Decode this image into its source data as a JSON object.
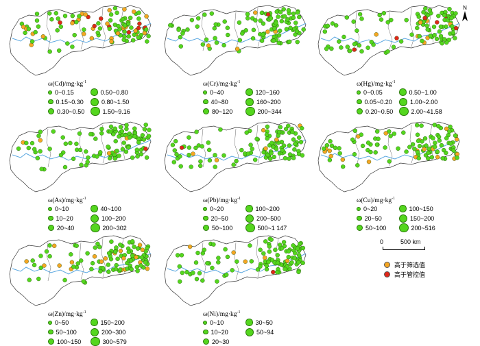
{
  "north_label": "N",
  "colors": {
    "normal": "#54d61e",
    "screen": "#f5a623",
    "control": "#e0261a",
    "river": "#5aa7e0"
  },
  "panels": [
    {
      "id": "cd",
      "title_prefix": "ω(Cd)/mg·kg",
      "title_sup": "-1",
      "classes": [
        "0~0.15",
        "0.50~0.80",
        "0.15~0.30",
        "0.80~1.50",
        "0.30~0.50",
        "1.50~9.16"
      ]
    },
    {
      "id": "cr",
      "title_prefix": "ω(Cr)/mg·kg",
      "title_sup": "-1",
      "classes": [
        "0~40",
        "120~160",
        "40~80",
        "160~200",
        "80~120",
        "200~344"
      ]
    },
    {
      "id": "hg",
      "title_prefix": "ω(Hg)/mg·kg",
      "title_sup": "-1",
      "classes": [
        "0~0.05",
        "0.50~1.00",
        "0.05~0.20",
        "1.00~2.00",
        "0.20~0.50",
        "2.00~41.58"
      ]
    },
    {
      "id": "as",
      "title_prefix": "ω(As)/mg·kg",
      "title_sup": "-1",
      "classes": [
        "0~10",
        "40~100",
        "10~20",
        "100~200",
        "20~40",
        "200~302"
      ]
    },
    {
      "id": "pb",
      "title_prefix": "ω(Pb)/mg·kg",
      "title_sup": "-1",
      "classes": [
        "0~20",
        "100~200",
        "20~50",
        "200~500",
        "50~100",
        "500~1 147"
      ]
    },
    {
      "id": "cu",
      "title_prefix": "ω(Cu)/mg·kg",
      "title_sup": "-1",
      "classes": [
        "0~20",
        "100~150",
        "20~50",
        "150~200",
        "50~100",
        "200~516"
      ]
    },
    {
      "id": "zn",
      "title_prefix": "ω(Zn)/mg·kg",
      "title_sup": "-1",
      "classes": [
        "0~50",
        "150~200",
        "50~100",
        "200~300",
        "100~150",
        "300~579"
      ]
    },
    {
      "id": "ni",
      "title_prefix": "ω(Ni)/mg·kg",
      "title_sup": "-1",
      "classes": [
        "0~10",
        "30~50",
        "10~20",
        "50~94",
        "20~30"
      ]
    }
  ],
  "scale": {
    "zero": "0",
    "distance": "500 km"
  },
  "legend": {
    "screen_label": "高于筛选值",
    "control_label": "高于管控值"
  }
}
